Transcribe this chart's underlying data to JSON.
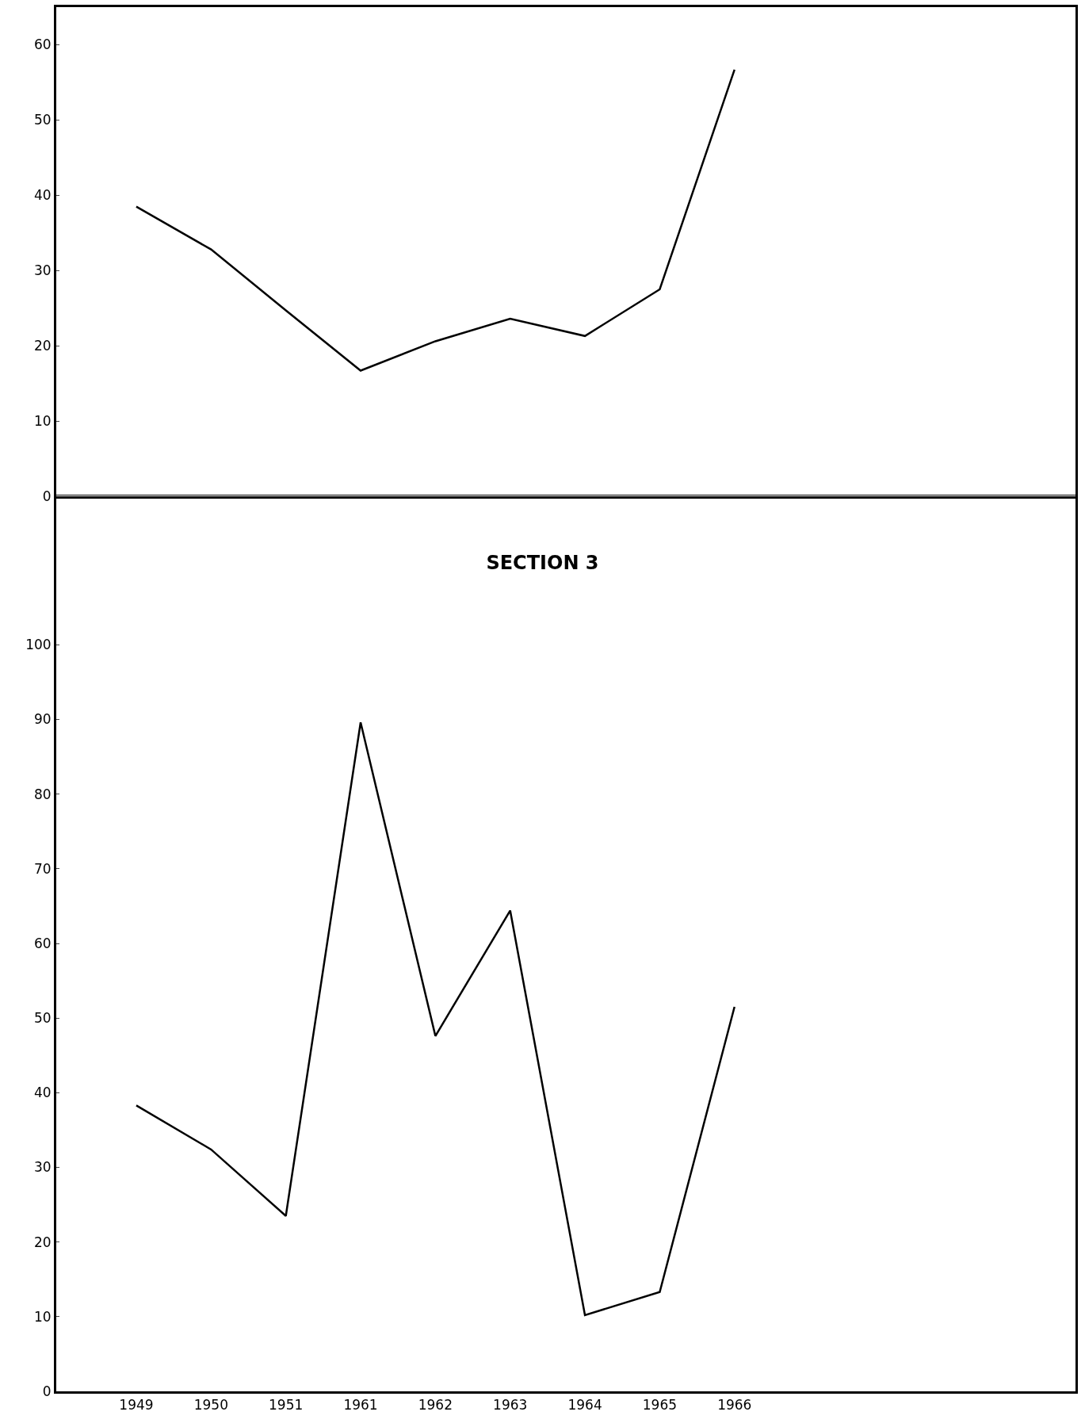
{
  "chart_data": [
    {
      "type": "line",
      "categories": [
        "1949",
        "1950",
        "1951",
        "1961",
        "1962",
        "1963",
        "1964",
        "1965",
        "1966"
      ],
      "series": [
        {
          "color": "#000000",
          "values": [
            38.5,
            32.8,
            24.7,
            16.7,
            20.6,
            23.6,
            21.3,
            27.5,
            56.7
          ]
        }
      ],
      "ylim": [
        0,
        65
      ],
      "yticks": [
        0,
        10,
        20,
        30,
        40,
        50,
        60
      ],
      "tick_labels": "y",
      "grid": false,
      "line_style": "solid"
    },
    {
      "type": "line",
      "title": "SECTION 3",
      "categories": [
        "1949",
        "1950",
        "1951",
        "1961",
        "1962",
        "1963",
        "1964",
        "1965",
        "1966"
      ],
      "series": [
        {
          "color": "#000000",
          "values": [
            38.3,
            32.4,
            23.5,
            89.6,
            47.6,
            64.4,
            10.2,
            13.3,
            51.5
          ]
        }
      ],
      "ylim": [
        0,
        120
      ],
      "yticks": [
        0,
        10,
        20,
        30,
        40,
        50,
        60,
        70,
        80,
        90,
        100
      ],
      "grid": false,
      "line_style": "solid"
    }
  ]
}
